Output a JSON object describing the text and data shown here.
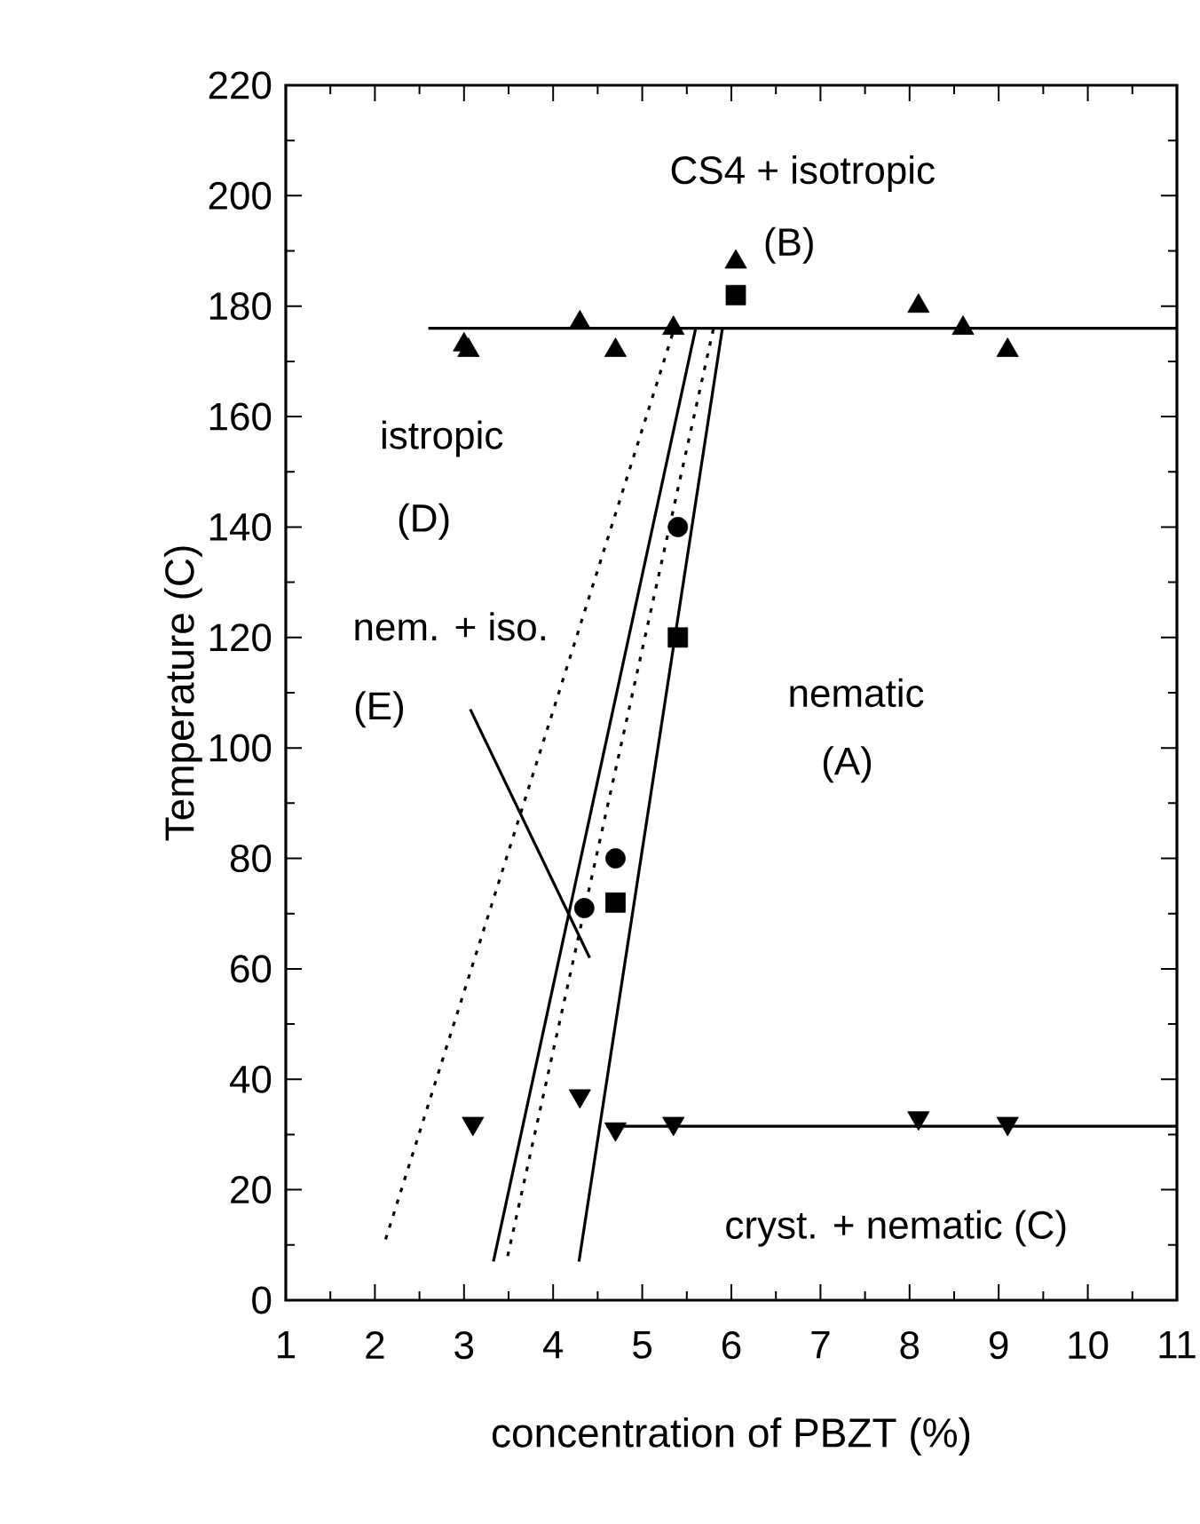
{
  "chart_data": {
    "type": "scatter",
    "xlabel": "concentration of PBZT (%)",
    "ylabel": "Temperature (C)",
    "xlim": [
      1,
      11
    ],
    "ylim": [
      0,
      220
    ],
    "xticks": [
      1,
      2,
      3,
      4,
      5,
      6,
      7,
      8,
      9,
      10,
      11
    ],
    "yticks": [
      0,
      20,
      40,
      60,
      80,
      100,
      120,
      140,
      160,
      180,
      200,
      220
    ],
    "grid": false,
    "series": [
      {
        "marker": "triangle",
        "color": "#000000",
        "x": [
          3.0,
          3.05,
          4.3,
          4.7,
          5.35,
          6.05,
          8.1,
          8.6,
          9.1
        ],
        "values": [
          173,
          172,
          177,
          172,
          176,
          188,
          180,
          176,
          172
        ]
      },
      {
        "marker": "square",
        "color": "#000000",
        "x": [
          6.05,
          5.4,
          4.7
        ],
        "values": [
          182,
          120,
          72
        ]
      },
      {
        "marker": "circle",
        "color": "#000000",
        "x": [
          5.4,
          4.7,
          4.35
        ],
        "values": [
          140,
          80,
          71
        ]
      },
      {
        "marker": "triangle down",
        "color": "#000000",
        "x": [
          3.1,
          4.3,
          4.7,
          5.35,
          8.1,
          9.1
        ],
        "values": [
          32,
          37,
          31,
          32,
          33,
          32
        ]
      },
      {
        "type": "line",
        "line_style": "solid",
        "color": "#000000",
        "x": [
          2.6,
          11
        ],
        "values": [
          176,
          176
        ]
      },
      {
        "type": "line",
        "line_style": "solid",
        "color": "#000000",
        "x": [
          4.6,
          11
        ],
        "values": [
          31.5,
          31.5
        ]
      },
      {
        "type": "line",
        "line_style": "dotted",
        "color": "#000000",
        "x": [
          2.12,
          5.36
        ],
        "values": [
          11,
          176
        ]
      },
      {
        "type": "line",
        "line_style": "solid",
        "color": "#000000",
        "x": [
          3.33,
          5.6
        ],
        "values": [
          7,
          176
        ]
      },
      {
        "type": "line",
        "line_style": "dotted",
        "color": "#000000",
        "x": [
          3.49,
          5.8
        ],
        "values": [
          8,
          176
        ]
      },
      {
        "type": "line",
        "line_style": "solid",
        "color": "#000000",
        "x": [
          4.29,
          5.9
        ],
        "values": [
          7,
          176
        ]
      },
      {
        "type": "line",
        "line_style": "solid",
        "color": "#000000",
        "x": [
          3.07,
          4.41
        ],
        "values": [
          107,
          62
        ]
      }
    ],
    "annotations": [
      "CS4 + isotropic",
      "(B)",
      "istropic",
      "(D)",
      "nem. + iso.",
      "(E)",
      "nematic",
      "(A)",
      "cryst. + nematic (C)"
    ]
  }
}
